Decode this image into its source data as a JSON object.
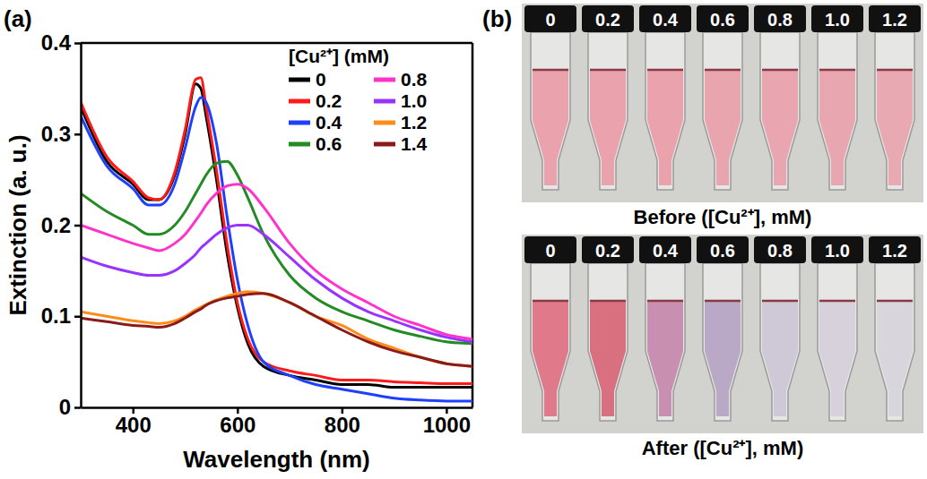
{
  "chart_data": {
    "type": "line",
    "panel_label": "(a)",
    "x_label": "Wavelength (nm)",
    "y_label": "Extinction (a. u.)",
    "legend_title": "[Cu²⁺] (mM)",
    "legend": "upper right",
    "grid": false,
    "xlim": [
      300,
      1050
    ],
    "xticks": [
      400,
      600,
      800,
      1000
    ],
    "ylim": [
      0,
      0.4
    ],
    "yticks": [
      0,
      0.1,
      0.2,
      0.3,
      0.4
    ],
    "x": [
      300,
      350,
      400,
      430,
      450,
      480,
      500,
      520,
      530,
      540,
      560,
      580,
      600,
      620,
      650,
      700,
      750,
      800,
      850,
      900,
      950,
      1000,
      1050
    ],
    "series": [
      {
        "name": "0",
        "color": "#000000",
        "values": [
          0.33,
          0.27,
          0.245,
          0.228,
          0.228,
          0.255,
          0.3,
          0.355,
          0.35,
          0.32,
          0.25,
          0.17,
          0.11,
          0.07,
          0.045,
          0.035,
          0.03,
          0.025,
          0.025,
          0.022,
          0.022,
          0.022,
          0.022
        ]
      },
      {
        "name": "0.2",
        "color": "#ff1a1a",
        "values": [
          0.335,
          0.275,
          0.248,
          0.23,
          0.228,
          0.258,
          0.305,
          0.36,
          0.362,
          0.33,
          0.26,
          0.18,
          0.115,
          0.075,
          0.05,
          0.04,
          0.035,
          0.03,
          0.03,
          0.028,
          0.027,
          0.026,
          0.026
        ]
      },
      {
        "name": "0.4",
        "color": "#1f3fff",
        "values": [
          0.32,
          0.265,
          0.24,
          0.222,
          0.222,
          0.245,
          0.285,
          0.33,
          0.34,
          0.335,
          0.29,
          0.21,
          0.14,
          0.09,
          0.05,
          0.035,
          0.025,
          0.02,
          0.015,
          0.01,
          0.008,
          0.007,
          0.007
        ]
      },
      {
        "name": "0.6",
        "color": "#228b22",
        "values": [
          0.235,
          0.215,
          0.2,
          0.19,
          0.19,
          0.2,
          0.215,
          0.235,
          0.245,
          0.255,
          0.268,
          0.27,
          0.255,
          0.23,
          0.19,
          0.145,
          0.12,
          0.105,
          0.095,
          0.085,
          0.078,
          0.072,
          0.07
        ]
      },
      {
        "name": "0.8",
        "color": "#ff33cc",
        "values": [
          0.2,
          0.19,
          0.18,
          0.175,
          0.172,
          0.18,
          0.19,
          0.205,
          0.213,
          0.222,
          0.235,
          0.243,
          0.245,
          0.24,
          0.22,
          0.18,
          0.15,
          0.13,
          0.115,
          0.1,
          0.09,
          0.08,
          0.075
        ]
      },
      {
        "name": "1.0",
        "color": "#9933ff",
        "values": [
          0.165,
          0.155,
          0.148,
          0.145,
          0.145,
          0.15,
          0.158,
          0.168,
          0.175,
          0.18,
          0.19,
          0.197,
          0.2,
          0.2,
          0.19,
          0.165,
          0.14,
          0.12,
          0.105,
          0.095,
          0.085,
          0.077,
          0.072
        ]
      },
      {
        "name": "1.2",
        "color": "#ff8c1a",
        "values": [
          0.105,
          0.1,
          0.095,
          0.093,
          0.092,
          0.095,
          0.1,
          0.107,
          0.11,
          0.113,
          0.118,
          0.122,
          0.125,
          0.127,
          0.125,
          0.115,
          0.1,
          0.09,
          0.075,
          0.065,
          0.055,
          0.048,
          0.045
        ]
      },
      {
        "name": "1.4",
        "color": "#8b1a1a",
        "values": [
          0.098,
          0.094,
          0.09,
          0.089,
          0.088,
          0.092,
          0.098,
          0.105,
          0.108,
          0.112,
          0.117,
          0.12,
          0.122,
          0.124,
          0.125,
          0.115,
          0.1,
          0.085,
          0.072,
          0.062,
          0.055,
          0.048,
          0.045
        ]
      }
    ]
  },
  "panel_b": {
    "panel_label": "(b)",
    "rows": [
      {
        "caption": "Before ([Cu²⁺], mM)",
        "labels": [
          "0",
          "0.2",
          "0.4",
          "0.6",
          "0.8",
          "1.0",
          "1.2"
        ],
        "colors": [
          "#eaa3ad",
          "#eaa3ad",
          "#eaa3ad",
          "#e9a5ae",
          "#e9a6b0",
          "#e8a7b0",
          "#e8a9b2"
        ]
      },
      {
        "caption": "After ([Cu²⁺], mM)",
        "labels": [
          "0",
          "0.2",
          "0.4",
          "0.6",
          "0.8",
          "1.0",
          "1.2"
        ],
        "colors": [
          "#e07a8a",
          "#d9707f",
          "#c98fb0",
          "#b9a9c6",
          "#cfc8d6",
          "#d6d1da",
          "#d9d5dd"
        ]
      }
    ]
  }
}
